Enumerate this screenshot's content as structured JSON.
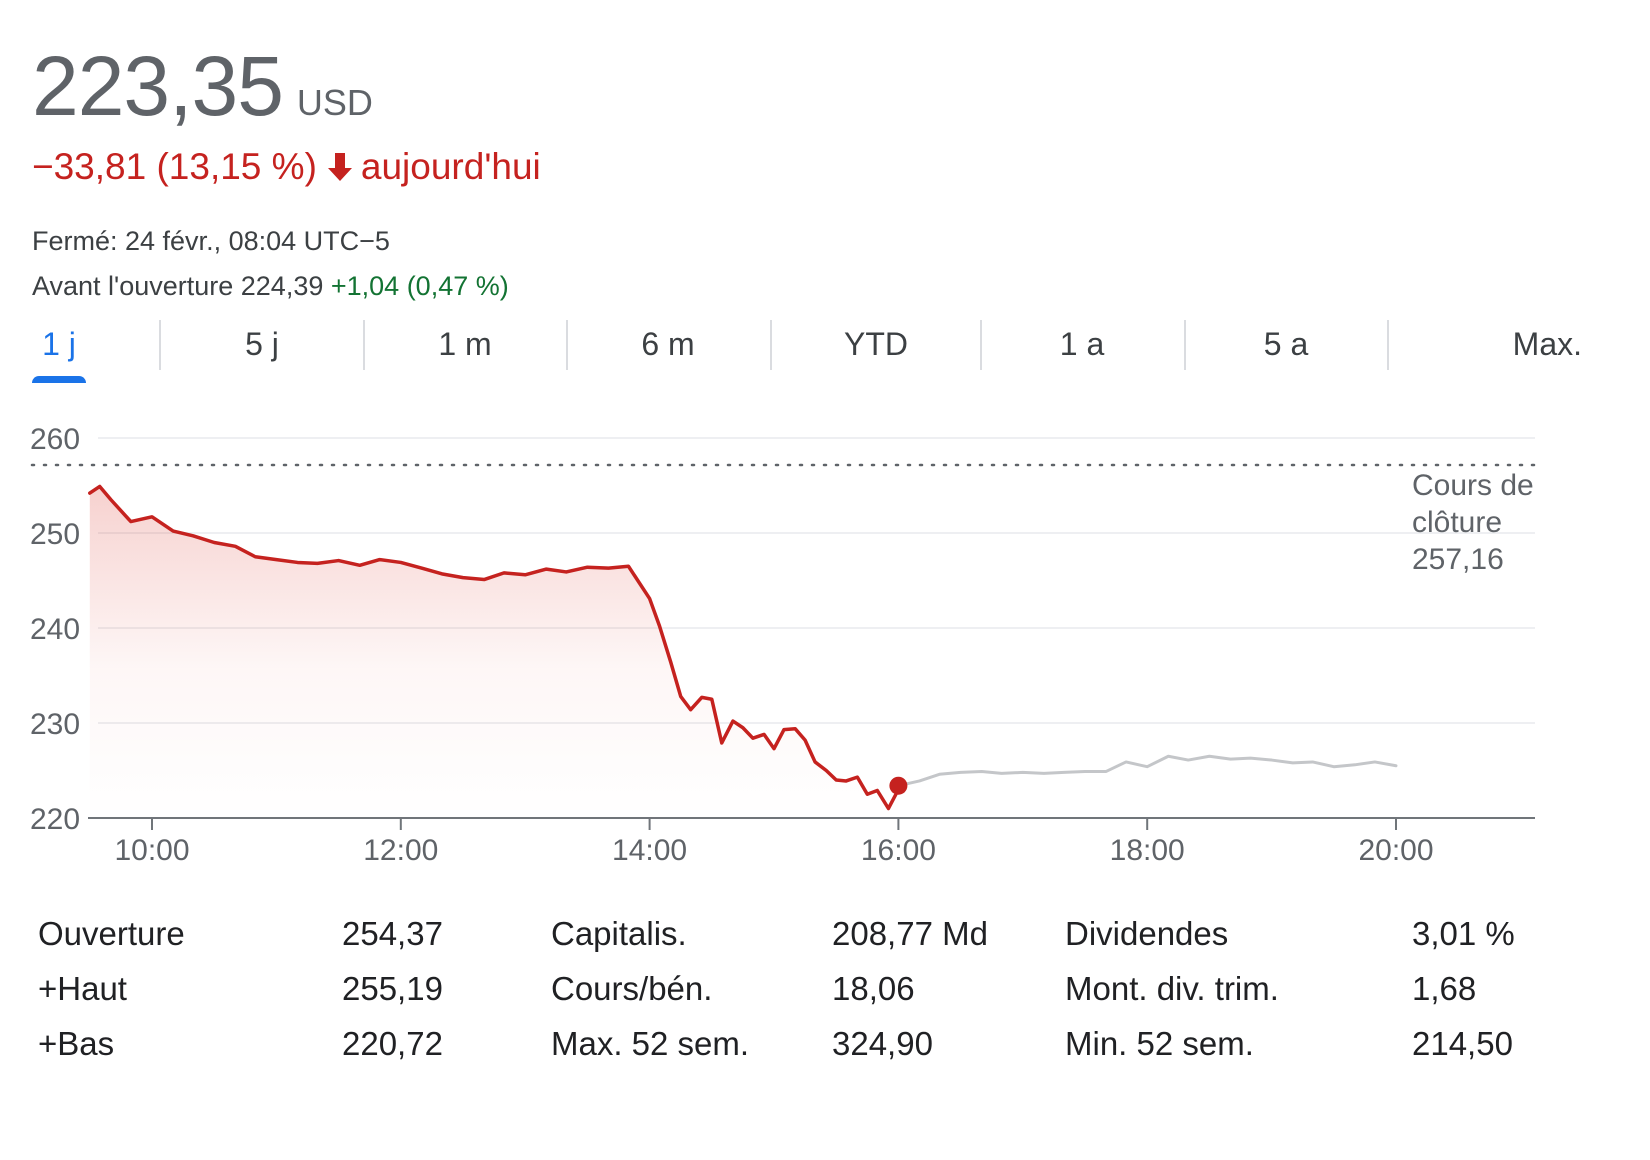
{
  "quote": {
    "price": "223,35",
    "currency": "USD",
    "change": "−33,81 (13,15 %)",
    "change_suffix": "aujourd'hui",
    "closed_text": "Fermé: 24 févr., 08:04 UTC−5",
    "premarket_label": "Avant l'ouverture 224,39",
    "premarket_change": "+1,04 (0,47 %)"
  },
  "colors": {
    "negative": "#c5221f",
    "positive": "#137333",
    "accent": "#1a73e8",
    "after_hours_line": "#c4c6c9"
  },
  "tabs": [
    {
      "label": "1 j",
      "active": true
    },
    {
      "label": "5 j",
      "active": false
    },
    {
      "label": "1 m",
      "active": false
    },
    {
      "label": "6 m",
      "active": false
    },
    {
      "label": "YTD",
      "active": false
    },
    {
      "label": "1 a",
      "active": false
    },
    {
      "label": "5 a",
      "active": false
    },
    {
      "label": "Max.",
      "active": false
    }
  ],
  "chart_data": {
    "type": "line",
    "ylim": [
      220,
      260
    ],
    "yticks": [
      "260",
      "250",
      "240",
      "230",
      "220"
    ],
    "ytick_values": [
      260,
      250,
      240,
      230,
      220
    ],
    "xticks": [
      "10:00",
      "12:00",
      "14:00",
      "16:00",
      "18:00",
      "20:00"
    ],
    "xtick_values": [
      10,
      12,
      14,
      16,
      18,
      20
    ],
    "xlim": [
      9.5,
      21.1
    ],
    "grid": true,
    "previous_close": {
      "value": 257.16,
      "label_line1": "Cours de",
      "label_line2": "clôture",
      "label_value": "257,16"
    },
    "series": [
      {
        "session": "regular",
        "x": [
          9.5,
          9.58,
          9.67,
          9.83,
          10.0,
          10.17,
          10.33,
          10.5,
          10.67,
          10.83,
          11.0,
          11.17,
          11.33,
          11.5,
          11.67,
          11.83,
          12.0,
          12.17,
          12.33,
          12.5,
          12.67,
          12.83,
          13.0,
          13.17,
          13.33,
          13.5,
          13.67,
          13.83,
          14.0,
          14.08,
          14.17,
          14.25,
          14.33,
          14.42,
          14.5,
          14.58,
          14.67,
          14.75,
          14.83,
          14.92,
          15.0,
          15.08,
          15.17,
          15.25,
          15.33,
          15.42,
          15.5,
          15.58,
          15.67,
          15.75,
          15.83,
          15.92,
          16.0
        ],
        "y": [
          254.2,
          254.9,
          253.5,
          251.2,
          251.7,
          250.2,
          249.7,
          249.0,
          248.6,
          247.5,
          247.2,
          246.9,
          246.8,
          247.1,
          246.6,
          247.2,
          246.9,
          246.3,
          245.7,
          245.3,
          245.1,
          245.8,
          245.6,
          246.2,
          245.9,
          246.4,
          246.3,
          246.5,
          243.1,
          240.2,
          236.4,
          232.8,
          231.4,
          232.7,
          232.5,
          227.9,
          230.2,
          229.5,
          228.4,
          228.8,
          227.3,
          229.3,
          229.4,
          228.2,
          225.9,
          225.0,
          224.0,
          223.9,
          224.3,
          222.5,
          222.9,
          221.0,
          223.0
        ]
      },
      {
        "session": "after_hours",
        "x": [
          16.0,
          16.17,
          16.33,
          16.5,
          16.67,
          16.83,
          17.0,
          17.17,
          17.33,
          17.5,
          17.67,
          17.83,
          18.0,
          18.17,
          18.33,
          18.5,
          18.67,
          18.83,
          19.0,
          19.17,
          19.33,
          19.5,
          19.67,
          19.83,
          20.0
        ],
        "y": [
          223.4,
          223.9,
          224.6,
          224.8,
          224.9,
          224.7,
          224.8,
          224.7,
          224.8,
          224.9,
          224.9,
          225.9,
          225.4,
          226.5,
          226.1,
          226.5,
          226.2,
          226.3,
          226.1,
          225.8,
          225.9,
          225.4,
          225.6,
          225.9,
          225.5
        ]
      }
    ],
    "current_point": {
      "x": 16.0,
      "y": 223.4
    }
  },
  "stats": [
    [
      {
        "label": "Ouverture",
        "value": "254,37"
      },
      {
        "label": "Capitalis.",
        "value": "208,77 Md"
      },
      {
        "label": "Dividendes",
        "value": "3,01 %"
      }
    ],
    [
      {
        "label": "+Haut",
        "value": "255,19"
      },
      {
        "label": "Cours/bén.",
        "value": "18,06"
      },
      {
        "label": "Mont. div. trim.",
        "value": "1,68"
      }
    ],
    [
      {
        "label": "+Bas",
        "value": "220,72"
      },
      {
        "label": "Max. 52 sem.",
        "value": "324,90"
      },
      {
        "label": "Min. 52 sem.",
        "value": "214,50"
      }
    ]
  ]
}
